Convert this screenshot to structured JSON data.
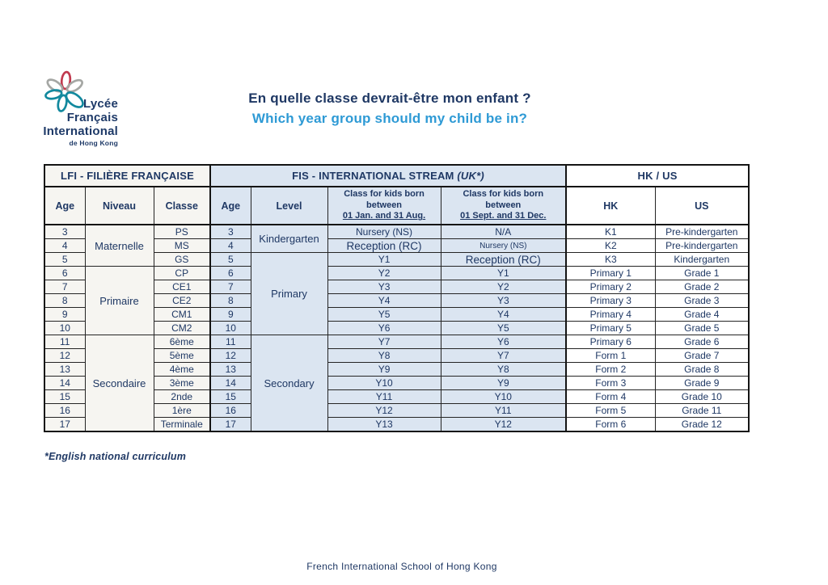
{
  "logo": {
    "line1": "Lycée",
    "line2": "Français",
    "line3": "International",
    "line4": "de Hong Kong"
  },
  "header": {
    "title_fr": "En quelle classe devrait-être mon enfant ?",
    "title_en": "Which year group should my child be in?"
  },
  "footnote": "*English national curriculum",
  "footer": "French International School of Hong Kong",
  "colors": {
    "navy_text": "#1F3864",
    "cyan_title": "#2E9AD5",
    "fis_blue_bg": "#DBE5F1",
    "lfi_bg": "#F6F5F1",
    "hkus_bg": "#FFFFFF",
    "border": "#141414",
    "logo_red": "#C13A4F",
    "logo_gray": "#A5A7A4",
    "logo_teal": "#12899E"
  },
  "table": {
    "sections": [
      {
        "id": "lfi",
        "label": "LFI - FILIÈRE FRANÇAISE",
        "suffix": "",
        "cols": 3
      },
      {
        "id": "fis",
        "label": "FIS - INTERNATIONAL STREAM",
        "suffix": "(UK*)",
        "cols": 4
      },
      {
        "id": "hkus",
        "label": "HK / US",
        "suffix": "",
        "cols": 2
      }
    ],
    "column_headers": [
      {
        "label": "Age"
      },
      {
        "label": "Niveau"
      },
      {
        "label": "Classe"
      },
      {
        "label": "Age"
      },
      {
        "label": "Level"
      },
      {
        "lines": [
          "Class for kids born",
          "between"
        ],
        "underlined": "01 Jan. and 31 Aug."
      },
      {
        "lines": [
          "Class for kids born",
          "between"
        ],
        "underlined": "01 Sept. and 31 Dec."
      },
      {
        "label": "HK"
      },
      {
        "label": "US"
      }
    ],
    "rows": [
      [
        "3",
        {
          "text": "Maternelle",
          "rowspan": 3
        },
        "PS",
        "3",
        {
          "text": "Kindergarten",
          "rowspan": 2
        },
        "Nursery (NS)",
        "N/A",
        "K1",
        "Pre-kindergarten"
      ],
      [
        "4",
        null,
        "MS",
        "4",
        null,
        {
          "text": "Reception (RC)",
          "size": "lg"
        },
        {
          "text": "Nursery (NS)",
          "size": "sm"
        },
        "K2",
        "Pre-kindergarten"
      ],
      [
        "5",
        null,
        "GS",
        "5",
        {
          "text": "Primary",
          "rowspan": 6
        },
        "Y1",
        {
          "text": "Reception (RC)",
          "size": "lg"
        },
        "K3",
        "Kindergarten"
      ],
      [
        "6",
        {
          "text": "Primaire",
          "rowspan": 5
        },
        "CP",
        "6",
        null,
        "Y2",
        "Y1",
        "Primary 1",
        "Grade 1"
      ],
      [
        "7",
        null,
        "CE1",
        "7",
        null,
        "Y3",
        "Y2",
        "Primary 2",
        "Grade 2"
      ],
      [
        "8",
        null,
        "CE2",
        "8",
        null,
        "Y4",
        "Y3",
        "Primary 3",
        "Grade 3"
      ],
      [
        "9",
        null,
        "CM1",
        "9",
        null,
        "Y5",
        "Y4",
        "Primary 4",
        "Grade 4"
      ],
      [
        "10",
        null,
        "CM2",
        "10",
        null,
        "Y6",
        "Y5",
        "Primary 5",
        "Grade 5"
      ],
      [
        "11",
        {
          "text": "Secondaire",
          "rowspan": 7
        },
        "6ème",
        "11",
        {
          "text": "Secondary",
          "rowspan": 7
        },
        "Y7",
        "Y6",
        "Primary 6",
        "Grade 6"
      ],
      [
        "12",
        null,
        "5ème",
        "12",
        null,
        "Y8",
        "Y7",
        "Form 1",
        "Grade 7"
      ],
      [
        "13",
        null,
        "4ème",
        "13",
        null,
        "Y9",
        "Y8",
        "Form 2",
        "Grade 8"
      ],
      [
        "14",
        null,
        "3ème",
        "14",
        null,
        "Y10",
        "Y9",
        "Form 3",
        "Grade 9"
      ],
      [
        "15",
        null,
        "2nde",
        "15",
        null,
        "Y11",
        "Y10",
        "Form 4",
        "Grade 10"
      ],
      [
        "16",
        null,
        "1ère",
        "16",
        null,
        "Y12",
        "Y11",
        "Form 5",
        "Grade 11"
      ],
      [
        "17",
        null,
        "Terminale",
        "17",
        null,
        "Y13",
        "Y12",
        "Form 6",
        "Grade 12"
      ]
    ]
  }
}
